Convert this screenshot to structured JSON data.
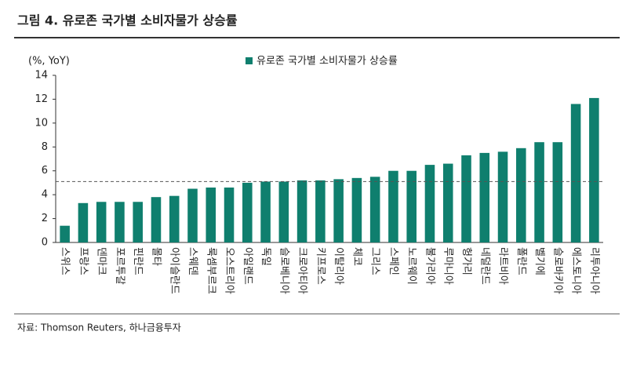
{
  "chart_data": {
    "type": "bar",
    "title": "그림 4. 유로존 국가별 소비자물가 상승률",
    "y_label": "(%, YoY)",
    "source": "자료: Thomson Reuters, 하나금융투자",
    "categories": [
      "스위스",
      "프랑스",
      "덴마크",
      "포르투갈",
      "핀란드",
      "몰타",
      "아이슬란드",
      "스웨덴",
      "룩셈부르크",
      "오스트리아",
      "아일랜드",
      "독일",
      "슬로베니아",
      "크로아티아",
      "키프로스",
      "이탈리아",
      "체코",
      "그리스",
      "스페인",
      "노르웨이",
      "불가리아",
      "루마니아",
      "헝가리",
      "네덜란드",
      "라트비아",
      "폴란드",
      "벨기에",
      "슬로바키아",
      "에스토니아",
      "리투아니아"
    ],
    "series": [
      {
        "name": "유로존 국가별 소비자물가 상승률",
        "color": "#0f7f6e",
        "values": [
          1.4,
          3.3,
          3.4,
          3.4,
          3.4,
          3.8,
          3.9,
          4.5,
          4.6,
          4.6,
          5.0,
          5.1,
          5.1,
          5.2,
          5.2,
          5.3,
          5.4,
          5.5,
          6.0,
          6.0,
          6.5,
          6.6,
          7.3,
          7.5,
          7.6,
          7.9,
          8.4,
          8.4,
          11.6,
          12.1
        ]
      }
    ],
    "reference_line": 5.1,
    "ylim": [
      0,
      14
    ],
    "yticks": [
      0,
      2,
      4,
      6,
      8,
      10,
      12,
      14
    ],
    "grid": false,
    "legend": "top"
  }
}
